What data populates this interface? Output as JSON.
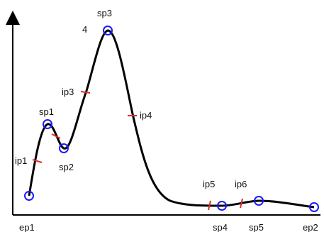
{
  "labels": {
    "ep1": "ep1",
    "ep2": "ep2",
    "sp1": "sp1",
    "sp2": "sp2",
    "sp3": "sp3",
    "sp4": "sp4",
    "sp5": "sp5",
    "ip1": "ip1",
    "ip3": "ip3",
    "ip4": "ip4",
    "ip5": "ip5",
    "ip6": "ip6",
    "peak_value": "4"
  },
  "colors": {
    "curve": "#000000",
    "axis": "#000000",
    "point_circle": "#1a1aff",
    "inflection_tick": "#d9302b"
  }
}
